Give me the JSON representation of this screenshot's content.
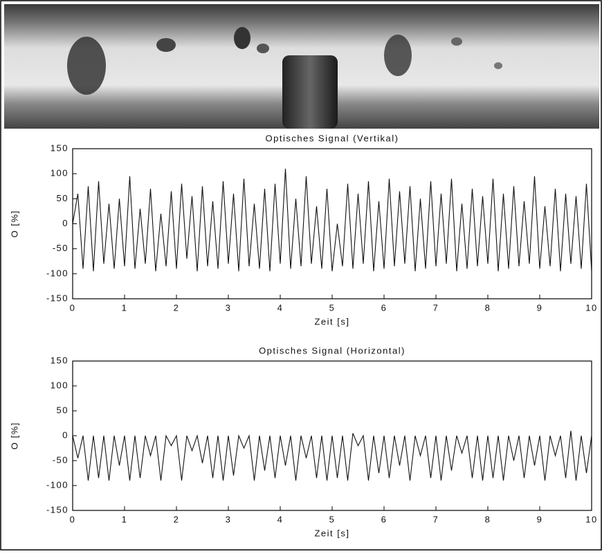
{
  "chart_data": [
    {
      "type": "line",
      "title": "Optisches Signal (Vertikal)",
      "x_label": "Zeit [s]",
      "y_label": "O [%]",
      "color": "#111111",
      "xlim": [
        0,
        10
      ],
      "xticks": [
        0,
        1,
        2,
        3,
        4,
        5,
        6,
        7,
        8,
        9,
        10
      ],
      "ylim": [
        -150,
        150
      ],
      "yticks": [
        -150,
        -100,
        -50,
        0,
        50,
        100,
        150
      ],
      "x": [
        0,
        0.1,
        0.2,
        0.3,
        0.4,
        0.5,
        0.6,
        0.7,
        0.8,
        0.9,
        1,
        1.1,
        1.2,
        1.3,
        1.4,
        1.5,
        1.6,
        1.7,
        1.8,
        1.9,
        2,
        2.1,
        2.2,
        2.3,
        2.4,
        2.5,
        2.6,
        2.7,
        2.8,
        2.9,
        3,
        3.1,
        3.2,
        3.3,
        3.4,
        3.5,
        3.6,
        3.7,
        3.8,
        3.9,
        4,
        4.1,
        4.2,
        4.3,
        4.4,
        4.5,
        4.6,
        4.7,
        4.8,
        4.9,
        5,
        5.1,
        5.2,
        5.3,
        5.4,
        5.5,
        5.6,
        5.7,
        5.8,
        5.9,
        6,
        6.1,
        6.2,
        6.3,
        6.4,
        6.5,
        6.6,
        6.7,
        6.8,
        6.9,
        7,
        7.1,
        7.2,
        7.3,
        7.4,
        7.5,
        7.6,
        7.7,
        7.8,
        7.9,
        8,
        8.1,
        8.2,
        8.3,
        8.4,
        8.5,
        8.6,
        8.7,
        8.8,
        8.9,
        9,
        9.1,
        9.2,
        9.3,
        9.4,
        9.5,
        9.6,
        9.7,
        9.8,
        9.9,
        10
      ],
      "values": [
        0,
        60,
        -90,
        75,
        -95,
        85,
        -80,
        40,
        -90,
        50,
        -85,
        95,
        -90,
        30,
        -80,
        70,
        -95,
        20,
        -85,
        65,
        -90,
        80,
        -70,
        55,
        -95,
        75,
        -85,
        45,
        -90,
        85,
        -80,
        60,
        -95,
        90,
        -85,
        40,
        -90,
        70,
        -95,
        80,
        -80,
        110,
        -90,
        50,
        -85,
        95,
        -80,
        35,
        -90,
        70,
        -95,
        0,
        -85,
        80,
        -90,
        60,
        -80,
        85,
        -95,
        45,
        -90,
        90,
        -85,
        65,
        -80,
        75,
        -95,
        50,
        -90,
        85,
        -85,
        60,
        -80,
        90,
        -95,
        40,
        -90,
        70,
        -85,
        55,
        -80,
        90,
        -95,
        60,
        -90,
        75,
        -85,
        45,
        -80,
        95,
        -90,
        35,
        -85,
        70,
        -95,
        60,
        -80,
        55,
        -90,
        80,
        -95
      ]
    },
    {
      "type": "line",
      "title": "Optisches Signal (Horizontal)",
      "x_label": "Zeit [s]",
      "y_label": "O [%]",
      "color": "#111111",
      "xlim": [
        0,
        10
      ],
      "xticks": [
        0,
        1,
        2,
        3,
        4,
        5,
        6,
        7,
        8,
        9,
        10
      ],
      "ylim": [
        -150,
        150
      ],
      "yticks": [
        -150,
        -100,
        -50,
        0,
        50,
        100,
        150
      ],
      "x": [
        0,
        0.1,
        0.2,
        0.3,
        0.4,
        0.5,
        0.6,
        0.7,
        0.8,
        0.9,
        1,
        1.1,
        1.2,
        1.3,
        1.4,
        1.5,
        1.6,
        1.7,
        1.8,
        1.9,
        2,
        2.1,
        2.2,
        2.3,
        2.4,
        2.5,
        2.6,
        2.7,
        2.8,
        2.9,
        3,
        3.1,
        3.2,
        3.3,
        3.4,
        3.5,
        3.6,
        3.7,
        3.8,
        3.9,
        4,
        4.1,
        4.2,
        4.3,
        4.4,
        4.5,
        4.6,
        4.7,
        4.8,
        4.9,
        5,
        5.1,
        5.2,
        5.3,
        5.4,
        5.5,
        5.6,
        5.7,
        5.8,
        5.9,
        6,
        6.1,
        6.2,
        6.3,
        6.4,
        6.5,
        6.6,
        6.7,
        6.8,
        6.9,
        7,
        7.1,
        7.2,
        7.3,
        7.4,
        7.5,
        7.6,
        7.7,
        7.8,
        7.9,
        8,
        8.1,
        8.2,
        8.3,
        8.4,
        8.5,
        8.6,
        8.7,
        8.8,
        8.9,
        9,
        9.1,
        9.2,
        9.3,
        9.4,
        9.5,
        9.6,
        9.7,
        9.8,
        9.9,
        10
      ],
      "values": [
        0,
        -45,
        0,
        -90,
        0,
        -85,
        0,
        -90,
        0,
        -60,
        0,
        -90,
        0,
        -85,
        0,
        -40,
        0,
        -90,
        0,
        -20,
        0,
        -90,
        0,
        -30,
        0,
        -55,
        0,
        -85,
        0,
        -90,
        0,
        -80,
        0,
        -25,
        0,
        -90,
        0,
        -70,
        0,
        -85,
        0,
        -60,
        0,
        -90,
        0,
        -45,
        0,
        -85,
        0,
        -90,
        0,
        -85,
        0,
        -90,
        5,
        -20,
        0,
        -90,
        0,
        -75,
        0,
        -85,
        0,
        -60,
        0,
        -90,
        0,
        -40,
        0,
        -85,
        0,
        -90,
        0,
        -70,
        0,
        -35,
        0,
        -85,
        0,
        -90,
        0,
        -85,
        0,
        -90,
        0,
        -50,
        0,
        -85,
        0,
        -60,
        0,
        -90,
        0,
        -40,
        0,
        -85,
        10,
        -90,
        0,
        -75,
        0
      ]
    }
  ]
}
